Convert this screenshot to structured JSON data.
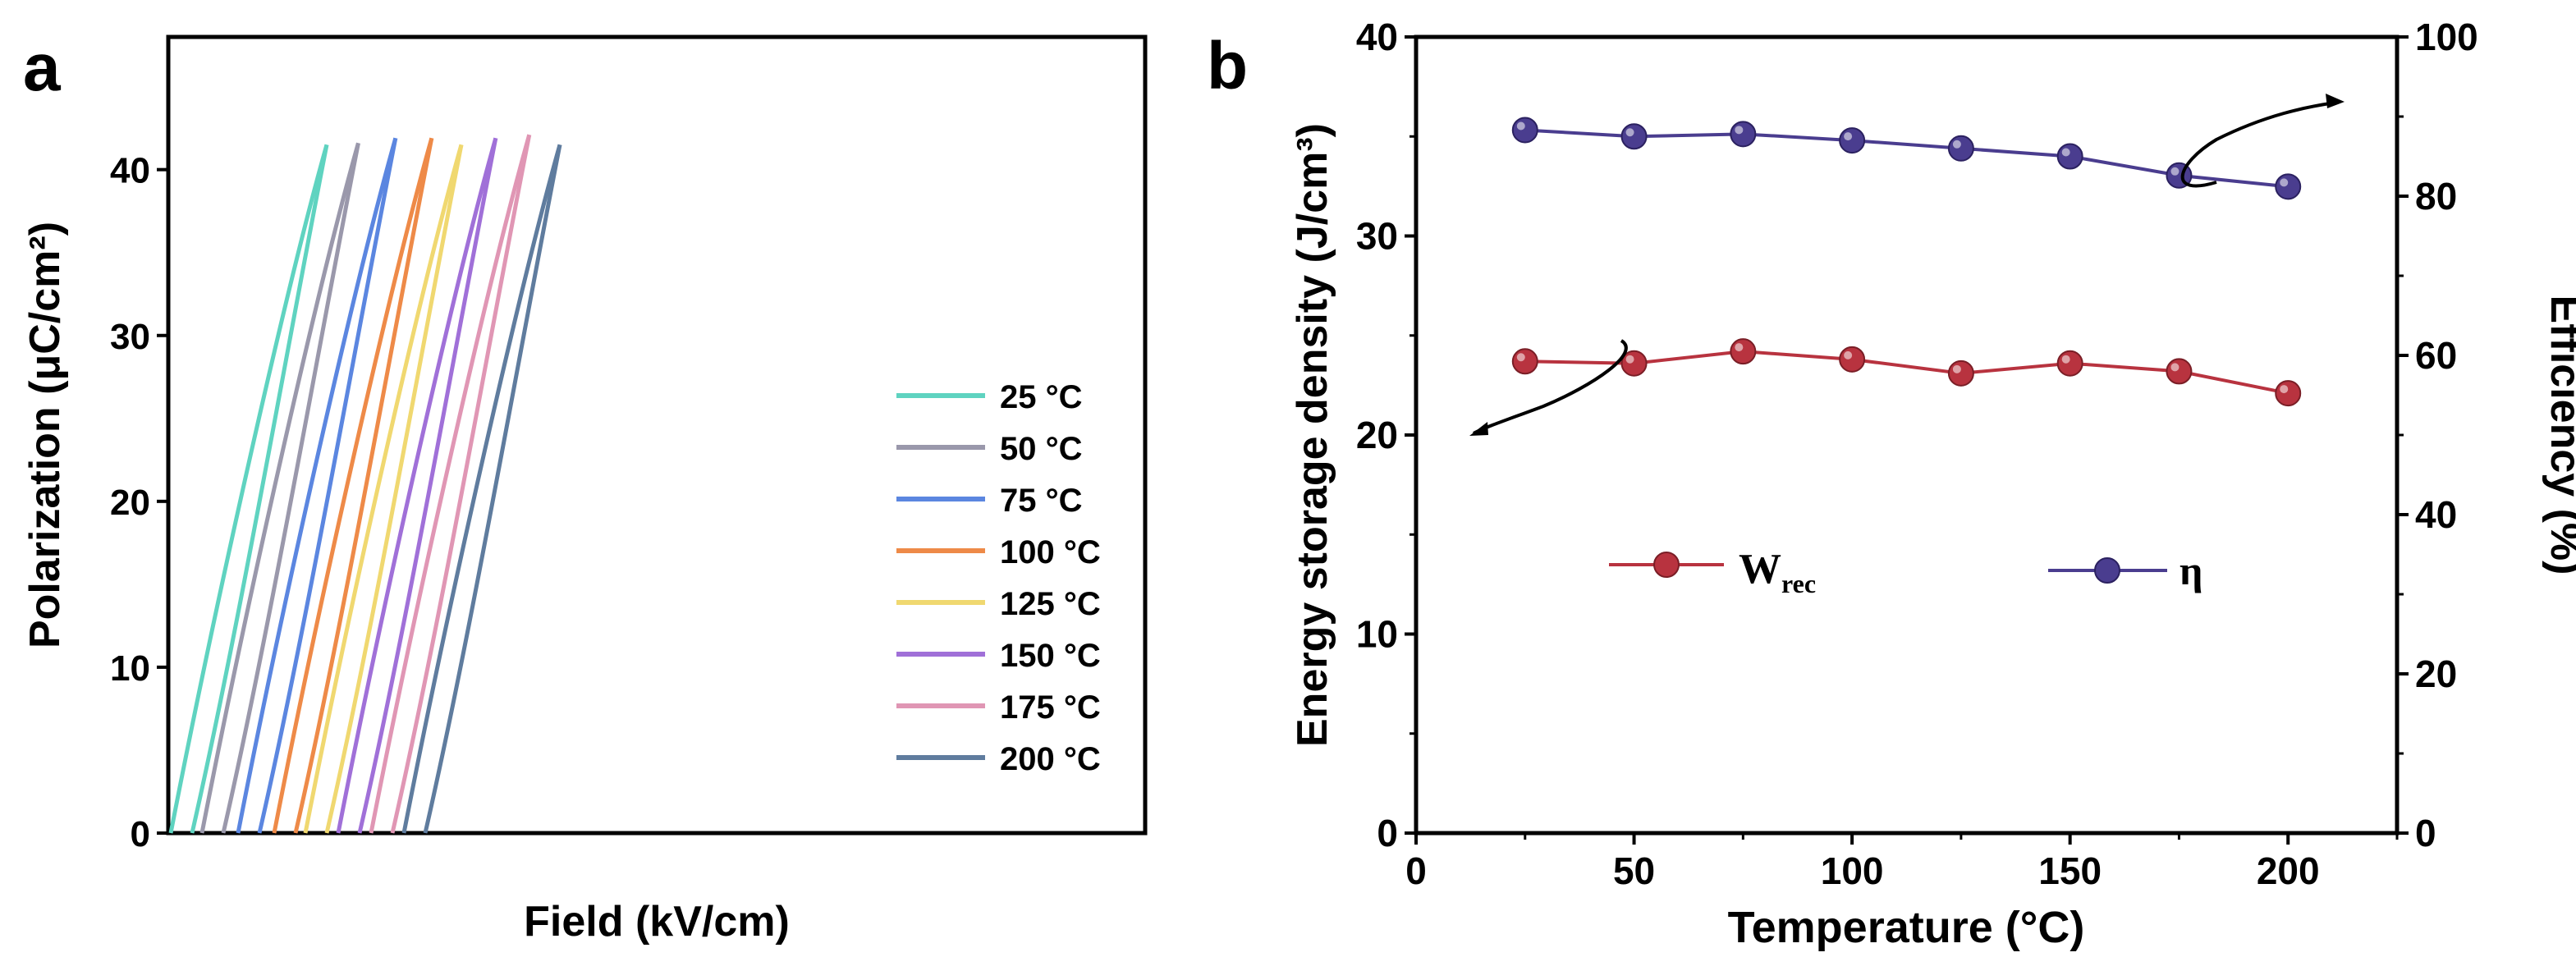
{
  "colors": {
    "axis": "#000000",
    "wrec": "#b8333f",
    "eta": "#4a3d8f"
  },
  "chart_data": [
    {
      "panel_label": "a",
      "type": "line",
      "xlabel": "Field (kV/cm)",
      "ylabel": "Polarization (μC/cm²)",
      "ylim": [
        0,
        48
      ],
      "yticks": [
        0,
        10,
        20,
        30,
        40
      ],
      "xticks": [],
      "x_units": "arbitrary (no tick labels shown)",
      "legend_position": "right-middle",
      "series": [
        {
          "name": "25 °C",
          "color": "#5fd3c0",
          "x_offset": 0,
          "p_max": 41.5
        },
        {
          "name": "50 °C",
          "color": "#9a98ab",
          "x_offset": 38,
          "p_max": 41.6
        },
        {
          "name": "75 °C",
          "color": "#5b86e0",
          "x_offset": 82,
          "p_max": 41.9
        },
        {
          "name": "100 °C",
          "color": "#ee8a48",
          "x_offset": 126,
          "p_max": 41.9
        },
        {
          "name": "125 °C",
          "color": "#f0d870",
          "x_offset": 164,
          "p_max": 41.5
        },
        {
          "name": "150 °C",
          "color": "#a070d8",
          "x_offset": 204,
          "p_max": 41.9
        },
        {
          "name": "175 °C",
          "color": "#e096b4",
          "x_offset": 244,
          "p_max": 42.1
        },
        {
          "name": "200 °C",
          "color": "#5f7c9e",
          "x_offset": 284,
          "p_max": 41.5
        }
      ]
    },
    {
      "panel_label": "b",
      "type": "line",
      "xlabel": "Temperature (°C)",
      "ylabel": "Energy storage density (J/cm³)",
      "y2label": "Efficiency (%)",
      "xlim": [
        0,
        225
      ],
      "xticks": [
        0,
        50,
        100,
        150,
        200
      ],
      "ylim": [
        0,
        40
      ],
      "yticks": [
        0,
        10,
        20,
        30,
        40
      ],
      "y2lim": [
        0,
        100
      ],
      "y2ticks": [
        0,
        20,
        40,
        60,
        80,
        100
      ],
      "x": [
        25,
        50,
        75,
        100,
        125,
        150,
        175,
        200
      ],
      "series": [
        {
          "name": "W",
          "subscript": "rec",
          "axis": "left",
          "color": "#b8333f",
          "values": [
            23.7,
            23.6,
            24.2,
            23.8,
            23.1,
            23.6,
            23.2,
            22.1
          ]
        },
        {
          "name": "η",
          "axis": "right",
          "color": "#4a3d8f",
          "values": [
            88.3,
            87.5,
            87.8,
            87.0,
            86.0,
            85.0,
            82.6,
            81.2
          ]
        }
      ],
      "legend_position": "center"
    }
  ]
}
